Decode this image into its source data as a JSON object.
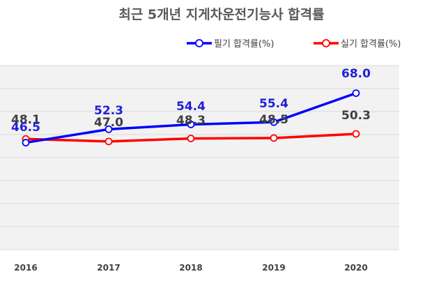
{
  "chart_data": {
    "type": "line",
    "title": "최근 5개년 지게차운전기능사 합격률",
    "categories": [
      "2016",
      "2017",
      "2018",
      "2019",
      "2020"
    ],
    "series": [
      {
        "name": "필기 합격률(%)",
        "color": "#0000ff",
        "values": [
          46.5,
          52.3,
          54.4,
          55.4,
          68.0
        ],
        "labels": [
          "46.5",
          "52.3",
          "54.4",
          "55.4",
          "68.0"
        ],
        "label_color": "#1f1fd8"
      },
      {
        "name": "실기 합격률(%)",
        "color": "#ff0000",
        "values": [
          48.1,
          47.0,
          48.3,
          48.5,
          50.3
        ],
        "labels": [
          "48.1",
          "47.0",
          "48.3",
          "48.5",
          "50.3"
        ],
        "label_color": "#404040"
      }
    ],
    "ylim": [
      0,
      80
    ],
    "grid": true,
    "legend": "top-right",
    "background": "#f2f2f2",
    "gridline_color": "#d9d9d9"
  }
}
